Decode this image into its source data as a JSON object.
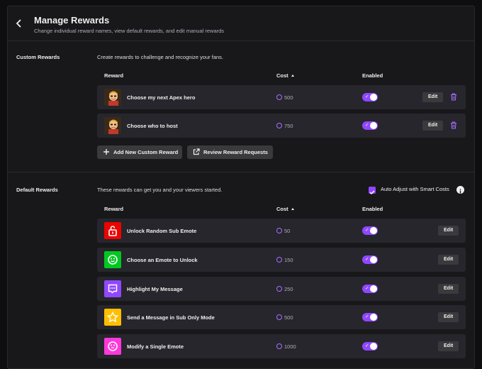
{
  "header": {
    "back_label": "Back",
    "title": "Manage Rewards",
    "subtitle": "Change individual reward names, view default rewards, and edit manual rewards"
  },
  "custom": {
    "label": "Custom Rewards",
    "description": "Create rewards to challenge and recognize your fans.",
    "columns": {
      "reward": "Reward",
      "cost": "Cost",
      "enabled": "Enabled"
    },
    "rows": [
      {
        "name": "Choose my next Apex hero",
        "cost": "500",
        "enabled": true,
        "edit": "Edit"
      },
      {
        "name": "Choose who to host",
        "cost": "750",
        "enabled": true,
        "edit": "Edit"
      }
    ],
    "add_button": "Add New Custom Reward",
    "review_button": "Review Reward Requests"
  },
  "default": {
    "label": "Default Rewards",
    "description": "These rewards can get you and your viewers started.",
    "auto_adjust_label": "Auto Adjust with Smart Costs",
    "auto_adjust_checked": true,
    "columns": {
      "reward": "Reward",
      "cost": "Cost",
      "enabled": "Enabled"
    },
    "rows": [
      {
        "name": "Unlock Random Sub Emote",
        "cost": "50",
        "enabled": true,
        "edit": "Edit",
        "icon": "unlock-icon",
        "color": "#eb0400"
      },
      {
        "name": "Choose an Emote to Unlock",
        "cost": "150",
        "enabled": true,
        "edit": "Edit",
        "icon": "smile-icon",
        "color": "#00c821"
      },
      {
        "name": "Highlight My Message",
        "cost": "250",
        "enabled": true,
        "edit": "Edit",
        "icon": "chat-highlight-icon",
        "color": "#9147ff"
      },
      {
        "name": "Send a Message in Sub Only Mode",
        "cost": "500",
        "enabled": true,
        "edit": "Edit",
        "icon": "star-icon",
        "color": "#ffbf00"
      },
      {
        "name": "Modify a Single Emote",
        "cost": "1000",
        "enabled": true,
        "edit": "Edit",
        "icon": "emote-modify-icon",
        "color": "#ff38db"
      }
    ]
  },
  "colors": {
    "accent": "#9147ff",
    "row_bg": "#26262c",
    "panel_bg": "#18181b"
  }
}
